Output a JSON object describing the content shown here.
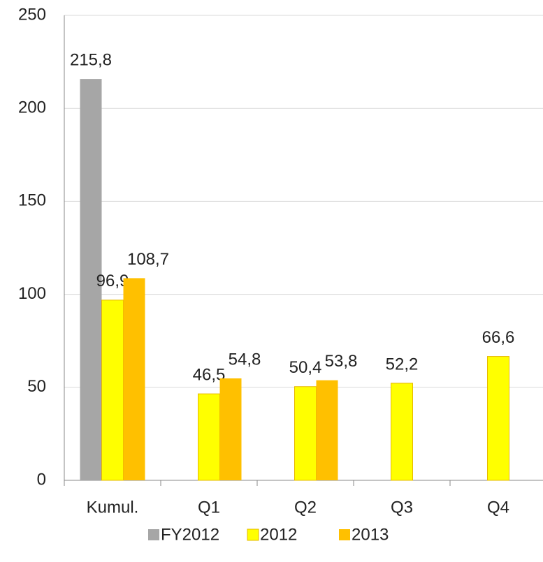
{
  "chart_data": {
    "type": "bar",
    "categories": [
      "Kumul.",
      "Q1",
      "Q2",
      "Q3",
      "Q4"
    ],
    "series": [
      {
        "name": "FY2012",
        "color": "#a6a6a6",
        "values": [
          215.8,
          null,
          null,
          null,
          null
        ],
        "value_labels": [
          "215,8",
          null,
          null,
          null,
          null
        ]
      },
      {
        "name": "2012",
        "color": "#ffff00",
        "values": [
          96.9,
          46.5,
          50.4,
          52.2,
          66.6
        ],
        "value_labels": [
          "96,9",
          "46,5",
          "50,4",
          "52,2",
          "66,6"
        ]
      },
      {
        "name": "2013",
        "color": "#ffc000",
        "values": [
          108.7,
          54.8,
          53.8,
          null,
          null
        ],
        "value_labels": [
          "108,7",
          "54,8",
          "53,8",
          null,
          null
        ]
      }
    ],
    "ylim": [
      0,
      250
    ],
    "yticks": [
      0,
      50,
      100,
      150,
      200,
      250
    ],
    "grid": true,
    "legend": "bottom"
  }
}
